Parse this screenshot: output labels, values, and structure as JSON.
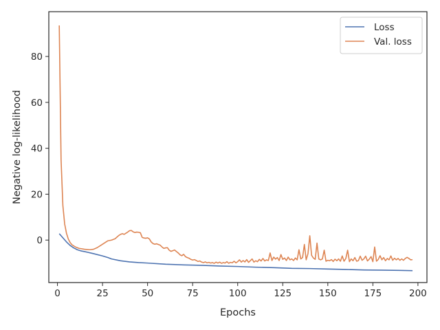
{
  "chart_data": {
    "type": "line",
    "title": "",
    "xlabel": "Epochs",
    "ylabel": "Negative log-likelihood",
    "xlim": [
      -4.8,
      205
    ],
    "ylim": [
      -18.5,
      99.5
    ],
    "xticks": [
      0,
      25,
      50,
      75,
      100,
      125,
      150,
      175,
      200
    ],
    "yticks": [
      0,
      20,
      40,
      60,
      80
    ],
    "grid": false,
    "legend": {
      "position": "top-right"
    },
    "series": [
      {
        "name": "Loss",
        "color": "#4c72b0",
        "points": [
          [
            1,
            2.8
          ],
          [
            3,
            1.0
          ],
          [
            5,
            -0.8
          ],
          [
            7,
            -2.3
          ],
          [
            9,
            -3.4
          ],
          [
            11,
            -4.2
          ],
          [
            13,
            -4.7
          ],
          [
            15,
            -5.0
          ],
          [
            20,
            -5.9
          ],
          [
            25,
            -6.9
          ],
          [
            28,
            -7.6
          ],
          [
            30,
            -8.2
          ],
          [
            35,
            -9.0
          ],
          [
            40,
            -9.5
          ],
          [
            45,
            -9.8
          ],
          [
            50,
            -10.0
          ],
          [
            60,
            -10.5
          ],
          [
            70,
            -10.8
          ],
          [
            80,
            -11.0
          ],
          [
            90,
            -11.3
          ],
          [
            100,
            -11.5
          ],
          [
            110,
            -11.8
          ],
          [
            120,
            -12.0
          ],
          [
            130,
            -12.3
          ],
          [
            140,
            -12.4
          ],
          [
            150,
            -12.6
          ],
          [
            160,
            -12.8
          ],
          [
            170,
            -13.0
          ],
          [
            180,
            -13.1
          ],
          [
            190,
            -13.2
          ],
          [
            197,
            -13.3
          ]
        ]
      },
      {
        "name": "Val. loss",
        "color": "#dd8452",
        "points": [
          [
            1,
            93.5
          ],
          [
            2,
            35
          ],
          [
            3,
            15
          ],
          [
            4,
            7
          ],
          [
            5,
            3
          ],
          [
            6,
            0.5
          ],
          [
            7,
            -1
          ],
          [
            8,
            -2
          ],
          [
            10,
            -3
          ],
          [
            12,
            -3.6
          ],
          [
            15,
            -4
          ],
          [
            18,
            -4.2
          ],
          [
            20,
            -4
          ],
          [
            22,
            -3.3
          ],
          [
            24,
            -2.3
          ],
          [
            26,
            -1.3
          ],
          [
            28,
            -0.3
          ],
          [
            30,
            0
          ],
          [
            32,
            0.6
          ],
          [
            33,
            1.3
          ],
          [
            34,
            2
          ],
          [
            35,
            2.5
          ],
          [
            36,
            2.8
          ],
          [
            37,
            2.5
          ],
          [
            38,
            3
          ],
          [
            39,
            3.5
          ],
          [
            40,
            4.1
          ],
          [
            41,
            4.2
          ],
          [
            42,
            3.6
          ],
          [
            43,
            3.3
          ],
          [
            44,
            3.5
          ],
          [
            45,
            3.4
          ],
          [
            46,
            3.2
          ],
          [
            47,
            1.2
          ],
          [
            48,
            0.9
          ],
          [
            49,
            0.8
          ],
          [
            50,
            1.0
          ],
          [
            51,
            0.5
          ],
          [
            52,
            -0.8
          ],
          [
            53,
            -1.5
          ],
          [
            54,
            -1.8
          ],
          [
            55,
            -1.6
          ],
          [
            56,
            -1.9
          ],
          [
            57,
            -2.2
          ],
          [
            58,
            -3.0
          ],
          [
            59,
            -3.6
          ],
          [
            60,
            -3.4
          ],
          [
            61,
            -3.3
          ],
          [
            62,
            -4.4
          ],
          [
            63,
            -4.9
          ],
          [
            64,
            -4.6
          ],
          [
            65,
            -4.3
          ],
          [
            66,
            -5.0
          ],
          [
            67,
            -5.6
          ],
          [
            68,
            -6.4
          ],
          [
            69,
            -6.8
          ],
          [
            70,
            -6.2
          ],
          [
            71,
            -7.2
          ],
          [
            72,
            -7.6
          ],
          [
            73,
            -7.9
          ],
          [
            74,
            -8.4
          ],
          [
            75,
            -8.7
          ],
          [
            76,
            -8.5
          ],
          [
            77,
            -8.9
          ],
          [
            78,
            -9.3
          ],
          [
            79,
            -9.1
          ],
          [
            80,
            -9.6
          ],
          [
            81,
            -9.8
          ],
          [
            82,
            -9.5
          ],
          [
            83,
            -9.9
          ],
          [
            84,
            -9.7
          ],
          [
            85,
            -10.0
          ],
          [
            86,
            -9.8
          ],
          [
            87,
            -10.1
          ],
          [
            88,
            -9.6
          ],
          [
            89,
            -10.0
          ],
          [
            90,
            -9.6
          ],
          [
            91,
            -10.1
          ],
          [
            92,
            -9.8
          ],
          [
            93,
            -10.0
          ],
          [
            94,
            -9.4
          ],
          [
            95,
            -10.1
          ],
          [
            96,
            -9.7
          ],
          [
            97,
            -9.9
          ],
          [
            98,
            -9.2
          ],
          [
            99,
            -9.9
          ],
          [
            100,
            -9.4
          ],
          [
            101,
            -8.6
          ],
          [
            102,
            -9.6
          ],
          [
            103,
            -8.9
          ],
          [
            104,
            -9.5
          ],
          [
            105,
            -8.5
          ],
          [
            106,
            -9.7
          ],
          [
            107,
            -9.0
          ],
          [
            108,
            -8.2
          ],
          [
            109,
            -9.6
          ],
          [
            110,
            -9.0
          ],
          [
            111,
            -9.4
          ],
          [
            112,
            -8.4
          ],
          [
            113,
            -9.1
          ],
          [
            114,
            -8.0
          ],
          [
            115,
            -9.1
          ],
          [
            116,
            -8.6
          ],
          [
            117,
            -8.9
          ],
          [
            118,
            -5.6
          ],
          [
            119,
            -8.9
          ],
          [
            120,
            -7.4
          ],
          [
            121,
            -8.3
          ],
          [
            122,
            -7.6
          ],
          [
            123,
            -8.9
          ],
          [
            124,
            -6.3
          ],
          [
            125,
            -8.4
          ],
          [
            126,
            -7.8
          ],
          [
            127,
            -8.9
          ],
          [
            128,
            -7.4
          ],
          [
            129,
            -8.6
          ],
          [
            130,
            -8.2
          ],
          [
            131,
            -8.9
          ],
          [
            132,
            -7.8
          ],
          [
            133,
            -8.6
          ],
          [
            134,
            -4.2
          ],
          [
            135,
            -8.2
          ],
          [
            136,
            -7.6
          ],
          [
            137,
            -1.9
          ],
          [
            138,
            -8.6
          ],
          [
            139,
            -5.9
          ],
          [
            140,
            1.9
          ],
          [
            141,
            -6.6
          ],
          [
            142,
            -7.8
          ],
          [
            143,
            -8.4
          ],
          [
            144,
            -1.3
          ],
          [
            145,
            -8.2
          ],
          [
            146,
            -8.6
          ],
          [
            147,
            -8.2
          ],
          [
            148,
            -4.4
          ],
          [
            149,
            -9.2
          ],
          [
            150,
            -8.8
          ],
          [
            151,
            -9.0
          ],
          [
            152,
            -8.5
          ],
          [
            153,
            -9.3
          ],
          [
            154,
            -8.3
          ],
          [
            155,
            -9.0
          ],
          [
            156,
            -8.2
          ],
          [
            157,
            -9.2
          ],
          [
            158,
            -6.9
          ],
          [
            159,
            -9.2
          ],
          [
            160,
            -8.0
          ],
          [
            161,
            -4.4
          ],
          [
            162,
            -9.4
          ],
          [
            163,
            -8.2
          ],
          [
            164,
            -9.0
          ],
          [
            165,
            -7.6
          ],
          [
            166,
            -9.2
          ],
          [
            167,
            -8.9
          ],
          [
            168,
            -7.0
          ],
          [
            169,
            -8.8
          ],
          [
            170,
            -8.2
          ],
          [
            171,
            -7.0
          ],
          [
            172,
            -9.1
          ],
          [
            173,
            -8.3
          ],
          [
            174,
            -7.2
          ],
          [
            175,
            -9.4
          ],
          [
            176,
            -3.0
          ],
          [
            177,
            -9.2
          ],
          [
            178,
            -8.4
          ],
          [
            179,
            -6.8
          ],
          [
            180,
            -8.6
          ],
          [
            181,
            -7.6
          ],
          [
            182,
            -9.0
          ],
          [
            183,
            -8.0
          ],
          [
            184,
            -8.6
          ],
          [
            185,
            -6.9
          ],
          [
            186,
            -8.8
          ],
          [
            187,
            -7.9
          ],
          [
            188,
            -8.6
          ],
          [
            189,
            -8.0
          ],
          [
            190,
            -8.8
          ],
          [
            191,
            -8.2
          ],
          [
            192,
            -8.8
          ],
          [
            193,
            -8.0
          ],
          [
            194,
            -7.5
          ],
          [
            195,
            -8.0
          ],
          [
            196,
            -8.6
          ],
          [
            197,
            -8.5
          ]
        ]
      }
    ]
  }
}
